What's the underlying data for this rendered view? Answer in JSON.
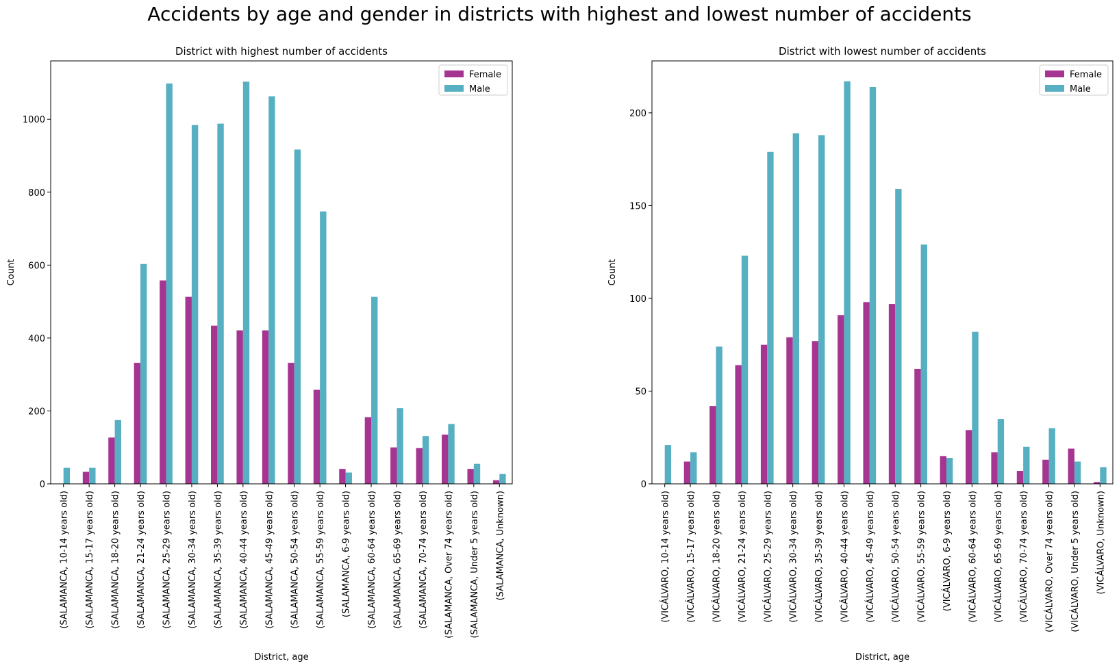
{
  "figure": {
    "title": "Accidents by age and gender in districts with highest and lowest number of accidents"
  },
  "colors": {
    "Female": "#a63491",
    "Male": "#57afc2"
  },
  "chart_data": [
    {
      "type": "bar",
      "title": "District with highest number of accidents",
      "xlabel": "District, age",
      "ylabel": "Count",
      "ylim": [
        0,
        1160
      ],
      "yticks": [
        0,
        200,
        400,
        600,
        800,
        1000
      ],
      "legend": "top-right",
      "grid": false,
      "categories": [
        "(SALAMANCA, 10-14 years old)",
        "(SALAMANCA, 15-17 years old)",
        "(SALAMANCA, 18-20 years old)",
        "(SALAMANCA, 21-24 years old)",
        "(SALAMANCA, 25-29 years old)",
        "(SALAMANCA, 30-34 years old)",
        "(SALAMANCA, 35-39 years old)",
        "(SALAMANCA, 40-44 years old)",
        "(SALAMANCA, 45-49 years old)",
        "(SALAMANCA, 50-54 years old)",
        "(SALAMANCA, 55-59 years old)",
        "(SALAMANCA, 6-9 years old)",
        "(SALAMANCA, 60-64 years old)",
        "(SALAMANCA, 65-69 years old)",
        "(SALAMANCA, 70-74 years old)",
        "(SALAMANCA, Over 74 years old)",
        "(SALAMANCA, Under 5 years old)",
        "(SALAMANCA, Unknown)"
      ],
      "series": [
        {
          "name": "Female",
          "values": [
            0,
            33,
            127,
            332,
            558,
            513,
            434,
            421,
            421,
            332,
            258,
            41,
            183,
            100,
            98,
            135,
            41,
            10
          ]
        },
        {
          "name": "Male",
          "values": [
            44,
            44,
            175,
            603,
            1098,
            984,
            988,
            1103,
            1063,
            917,
            747,
            31,
            513,
            208,
            131,
            164,
            55,
            27
          ]
        }
      ]
    },
    {
      "type": "bar",
      "title": "District with lowest number of accidents",
      "xlabel": "District, age",
      "ylabel": "Count",
      "ylim": [
        0,
        228
      ],
      "yticks": [
        0,
        50,
        100,
        150,
        200
      ],
      "legend": "top-right",
      "grid": false,
      "categories": [
        "(VICÁLVARO, 10-14 years old)",
        "(VICÁLVARO, 15-17 years old)",
        "(VICÁLVARO, 18-20 years old)",
        "(VICÁLVARO, 21-24 years old)",
        "(VICÁLVARO, 25-29 years old)",
        "(VICÁLVARO, 30-34 years old)",
        "(VICÁLVARO, 35-39 years old)",
        "(VICÁLVARO, 40-44 years old)",
        "(VICÁLVARO, 45-49 years old)",
        "(VICÁLVARO, 50-54 years old)",
        "(VICÁLVARO, 55-59 years old)",
        "(VICÁLVARO, 6-9 years old)",
        "(VICÁLVARO, 60-64 years old)",
        "(VICÁLVARO, 65-69 years old)",
        "(VICÁLVARO, 70-74 years old)",
        "(VICÁLVARO, Over 74 years old)",
        "(VICÁLVARO, Under 5 years old)",
        "(VICÁLVARO, Unknown)"
      ],
      "series": [
        {
          "name": "Female",
          "values": [
            0,
            12,
            42,
            64,
            75,
            79,
            77,
            91,
            98,
            97,
            62,
            15,
            29,
            17,
            7,
            13,
            19,
            1
          ]
        },
        {
          "name": "Male",
          "values": [
            21,
            17,
            74,
            123,
            179,
            189,
            188,
            217,
            214,
            159,
            129,
            14,
            82,
            35,
            20,
            30,
            12,
            9
          ]
        }
      ]
    }
  ]
}
